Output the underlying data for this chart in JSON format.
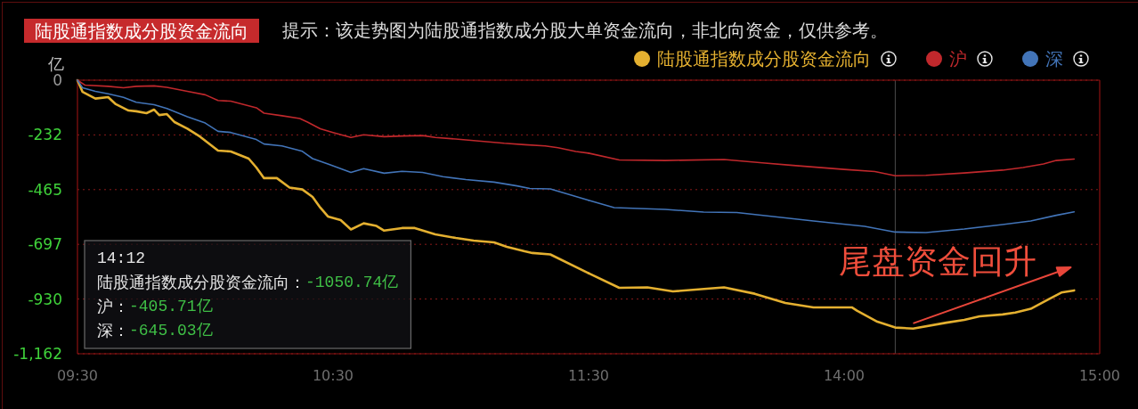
{
  "chart_data": [
    {
      "type": "line",
      "title": "陆股通指数成分股资金流向",
      "subtitle": "提示：该走势图为陆股通指数成分股大单资金流向，非北向资金，仅供参考。",
      "ylabel": "亿",
      "xlim": [
        9.5,
        11.5
      ],
      "xticks": [
        {
          "value": 9.5,
          "label": "09:30"
        },
        {
          "value": 10.5,
          "label": "10:30"
        },
        {
          "value": 11.5,
          "label": "11:30"
        }
      ],
      "ylim": [
        -1162,
        0
      ],
      "yticks": [
        0,
        {
          "value": -232.4,
          "label": "-232"
        },
        {
          "value": -464.8,
          "label": "-465"
        },
        {
          "value": -697.2,
          "label": "-697"
        },
        {
          "value": -929.6,
          "label": "-930"
        },
        {
          "value": -1162,
          "label": "-1,162"
        }
      ],
      "grid": "y",
      "line_style": "solid",
      "series": [
        {
          "color": "#e4b030",
          "x": [
            9.5,
            9.52,
            9.57,
            9.62,
            9.65,
            9.7,
            9.73,
            9.77,
            9.8,
            9.82,
            9.85,
            9.88,
            9.93,
            9.98,
            10.05,
            10.1,
            10.17,
            10.2,
            10.23,
            10.28,
            10.33,
            10.38,
            10.42,
            10.45,
            10.48,
            10.53,
            10.57,
            10.62,
            10.67,
            10.7,
            10.77,
            10.82,
            10.9,
            10.98,
            11.05,
            11.13,
            11.18,
            11.25,
            11.28,
            11.35,
            11.5
          ],
          "values": [
            0,
            -50,
            -78,
            -72,
            -102,
            -129,
            -132,
            -140,
            -125,
            -148,
            -144,
            -178,
            -206,
            -240,
            -299,
            -303,
            -333,
            -371,
            -416,
            -416,
            -456,
            -464,
            -496,
            -541,
            -579,
            -594,
            -634,
            -608,
            -619,
            -639,
            -628,
            -628,
            -655,
            -670,
            -681,
            -689,
            -708,
            -727,
            -734,
            -740,
            -820
          ]
        },
        {
          "color": "#c0282c",
          "x": [
            9.5,
            9.53,
            9.62,
            9.68,
            9.73,
            9.8,
            9.85,
            9.93,
            10.0,
            10.05,
            10.1,
            10.2,
            10.23,
            10.3,
            10.37,
            10.4,
            10.45,
            10.5,
            10.57,
            10.62,
            10.7,
            10.77,
            10.85,
            10.9,
            10.98,
            11.08,
            11.17,
            11.25,
            11.33,
            11.38,
            11.45,
            11.5
          ],
          "values": [
            0,
            -21,
            -26,
            -32,
            -26,
            -24,
            -30,
            -47,
            -62,
            -86,
            -89,
            -117,
            -140,
            -151,
            -163,
            -178,
            -206,
            -222,
            -243,
            -232,
            -240,
            -237,
            -235,
            -243,
            -250,
            -259,
            -268,
            -274,
            -279,
            -287,
            -303,
            -310
          ]
        },
        {
          "color": "#4274b8",
          "x": [
            9.5,
            9.52,
            9.57,
            9.62,
            9.68,
            9.73,
            9.8,
            9.85,
            9.93,
            10.0,
            10.05,
            10.1,
            10.2,
            10.23,
            10.3,
            10.38,
            10.42,
            10.48,
            10.57,
            10.62,
            10.7,
            10.77,
            10.85,
            10.93,
            11.02,
            11.13,
            11.22,
            11.27,
            11.35,
            11.5
          ],
          "values": [
            0,
            -32,
            -47,
            -58,
            -73,
            -94,
            -104,
            -120,
            -155,
            -182,
            -217,
            -222,
            -252,
            -271,
            -279,
            -302,
            -333,
            -356,
            -392,
            -376,
            -395,
            -387,
            -392,
            -410,
            -422,
            -433,
            -449,
            -460,
            -462,
            -510
          ]
        }
      ]
    },
    {
      "type": "line",
      "xlim": [
        13,
        15
      ],
      "xticks": [
        {
          "value": 14,
          "label": "14:00"
        },
        {
          "value": 15,
          "label": "15:00"
        }
      ],
      "ylim": [
        -1162,
        0
      ],
      "yticks": [
        0,
        -232.4,
        -464.8,
        -697.2,
        -929.6,
        -1162
      ],
      "tick_labels": "x",
      "grid": "y",
      "legend": "top right",
      "line_style": "solid",
      "ref_lines": [
        {
          "axis": "x",
          "value": 14.2,
          "color": "#4a4a4a"
        }
      ],
      "annotations": [
        "14:12",
        "陆股通指数成分股资金流向：-1050.74亿",
        "沪：-405.71亿",
        "深：-645.03亿",
        {
          "text": "尾盘资金回升",
          "x": 14.27,
          "y": -1033
        }
      ],
      "series": [
        {
          "name": "陆股通指数成分股资金流向",
          "color": "#e4b030",
          "x": [
            13.0,
            13.12,
            13.23,
            13.33,
            13.53,
            13.65,
            13.77,
            13.88,
            14.03,
            14.05,
            14.13,
            14.2,
            14.27,
            14.4,
            14.47,
            14.53,
            14.62,
            14.67,
            14.73,
            14.8,
            14.85,
            14.9
          ],
          "values": [
            -820,
            -882,
            -880,
            -897,
            -880,
            -907,
            -946,
            -965,
            -965,
            -979,
            -1026,
            -1050.74,
            -1055,
            -1030,
            -1018,
            -1003,
            -995,
            -987,
            -971,
            -931,
            -902,
            -893
          ]
        },
        {
          "name": "沪",
          "color": "#c0282c",
          "x": [
            13.0,
            13.12,
            13.3,
            13.53,
            13.68,
            13.8,
            14.0,
            14.12,
            14.2,
            14.32,
            14.47,
            14.62,
            14.7,
            14.78,
            14.83,
            14.9
          ],
          "values": [
            -310,
            -339,
            -341,
            -337,
            -351,
            -362,
            -379,
            -388,
            -405.71,
            -404,
            -394,
            -382,
            -371,
            -356,
            -341,
            -335
          ]
        },
        {
          "name": "深",
          "color": "#4274b8",
          "x": [
            13.0,
            13.1,
            13.3,
            13.45,
            13.58,
            13.88,
            14.08,
            14.2,
            14.32,
            14.47,
            14.62,
            14.73,
            14.83,
            14.9
          ],
          "values": [
            -510,
            -541,
            -549,
            -560,
            -562,
            -598,
            -621,
            -645.03,
            -647,
            -632,
            -613,
            -598,
            -574,
            -559
          ]
        }
      ]
    }
  ]
}
